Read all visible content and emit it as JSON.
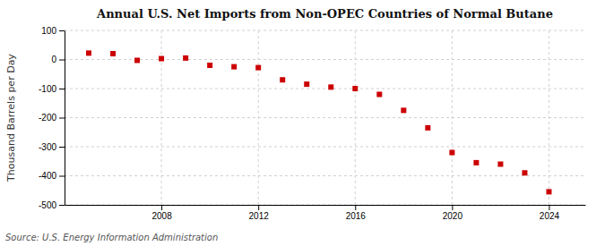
{
  "chart_data": {
    "type": "scatter",
    "title": "Annual U.S. Net Imports from Non-OPEC Countries of Normal Butane",
    "ylabel": "Thousand Barrels per Day",
    "annotation": "Source: U.S. Energy Information Administration",
    "x": [
      2005,
      2006,
      2007,
      2008,
      2009,
      2010,
      2011,
      2012,
      2013,
      2014,
      2015,
      2016,
      2017,
      2018,
      2019,
      2020,
      2021,
      2022,
      2023,
      2024
    ],
    "values": [
      22,
      20,
      -3,
      3,
      5,
      -20,
      -25,
      -28,
      -70,
      -85,
      -95,
      -100,
      -120,
      -175,
      -235,
      -320,
      -355,
      -360,
      -390,
      -455
    ],
    "color": "#cc0000",
    "marker": "square",
    "xlim": [
      2004.0,
      2025.5
    ],
    "xticks": [
      2008,
      2012,
      2016,
      2020,
      2024
    ],
    "ylim": [
      -500,
      100
    ],
    "yticks": [
      -500,
      -400,
      -300,
      -200,
      -100,
      0,
      100
    ],
    "grid": true
  }
}
